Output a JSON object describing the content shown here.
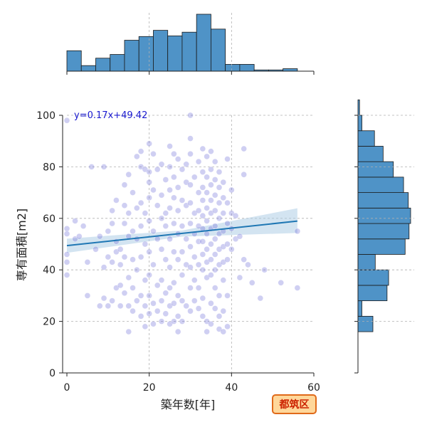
{
  "chart_data": {
    "type": "scatter",
    "title": "",
    "xlabel": "築年数[年]",
    "ylabel": "専有面積[m2]",
    "xlim": [
      0,
      60
    ],
    "ylim": [
      0,
      100
    ],
    "x_ticks": [
      0,
      20,
      40,
      60
    ],
    "y_ticks": [
      0,
      20,
      40,
      60,
      80,
      100
    ],
    "grid": true,
    "point_color": "#6b6bd6",
    "regression": {
      "slope": 0.17,
      "intercept": 49.42,
      "x_range": [
        0,
        56
      ],
      "ci_lower": [
        [
          0,
          46.6
        ],
        [
          28,
          52.9
        ],
        [
          56,
          54.3
        ]
      ],
      "ci_upper": [
        [
          0,
          52.1
        ],
        [
          28,
          55.3
        ],
        [
          56,
          63.9
        ]
      ],
      "line_color": "#1f77b4",
      "band_color": "#aecde6",
      "equation": "y=0.17x+49.42"
    },
    "marginal_x_hist": {
      "bin_width": 3.5,
      "bin_start": 0,
      "counts": [
        3.3,
        0.9,
        2.1,
        2.7,
        5.0,
        5.6,
        6.6,
        5.7,
        6.3,
        9.2,
        6.8,
        1.1,
        1.1,
        0.2,
        0.2,
        0.4
      ],
      "color": "#4f93c7"
    },
    "marginal_y_hist": {
      "bin_width": 6,
      "bin_start": 16,
      "counts": [
        1.9,
        0.5,
        3.7,
        3.9,
        2.2,
        6.0,
        6.5,
        6.7,
        6.4,
        5.8,
        4.5,
        3.2,
        2.1,
        0.5,
        0.2
      ],
      "color": "#4f93c7"
    },
    "badge": {
      "text": "都筑区",
      "fill": "#ffd79a",
      "border": "#e06a1a",
      "text_color": "#cc2200"
    },
    "points": [
      [
        0,
        98
      ],
      [
        0,
        56
      ],
      [
        0,
        54
      ],
      [
        0,
        46
      ],
      [
        0,
        43
      ],
      [
        0,
        38
      ],
      [
        2,
        59
      ],
      [
        2,
        52
      ],
      [
        3,
        53
      ],
      [
        4,
        57
      ],
      [
        5,
        43
      ],
      [
        5,
        30
      ],
      [
        6,
        80
      ],
      [
        7,
        48
      ],
      [
        8,
        26
      ],
      [
        8,
        53
      ],
      [
        9,
        80
      ],
      [
        9,
        41
      ],
      [
        9,
        29
      ],
      [
        10,
        55
      ],
      [
        10,
        45
      ],
      [
        10,
        26
      ],
      [
        11,
        63
      ],
      [
        11,
        58
      ],
      [
        11,
        43
      ],
      [
        11,
        28
      ],
      [
        12,
        67
      ],
      [
        12,
        51
      ],
      [
        12,
        47
      ],
      [
        12,
        33
      ],
      [
        13,
        48
      ],
      [
        13,
        42
      ],
      [
        13,
        34
      ],
      [
        13,
        26
      ],
      [
        14,
        73
      ],
      [
        14,
        65
      ],
      [
        14,
        58
      ],
      [
        14,
        45
      ],
      [
        14,
        31
      ],
      [
        15,
        77
      ],
      [
        15,
        62
      ],
      [
        15,
        53
      ],
      [
        15,
        37
      ],
      [
        15,
        26
      ],
      [
        16,
        70
      ],
      [
        16,
        55
      ],
      [
        16,
        44
      ],
      [
        16,
        33
      ],
      [
        16,
        24
      ],
      [
        17,
        84
      ],
      [
        17,
        64
      ],
      [
        17,
        52
      ],
      [
        17,
        40
      ],
      [
        17,
        28
      ],
      [
        18,
        86
      ],
      [
        18,
        80
      ],
      [
        18,
        66
      ],
      [
        18,
        57
      ],
      [
        18,
        45
      ],
      [
        18,
        30
      ],
      [
        18,
        22
      ],
      [
        19,
        79
      ],
      [
        19,
        62
      ],
      [
        19,
        50
      ],
      [
        19,
        36
      ],
      [
        19,
        26
      ],
      [
        19,
        18
      ],
      [
        20,
        89
      ],
      [
        20,
        74
      ],
      [
        20,
        68
      ],
      [
        20,
        59
      ],
      [
        20,
        47
      ],
      [
        20,
        38
      ],
      [
        20,
        30
      ],
      [
        20,
        23
      ],
      [
        21,
        85
      ],
      [
        21,
        71
      ],
      [
        21,
        55
      ],
      [
        21,
        42
      ],
      [
        21,
        27
      ],
      [
        21,
        19
      ],
      [
        22,
        79
      ],
      [
        22,
        65
      ],
      [
        22,
        52
      ],
      [
        22,
        34
      ],
      [
        22,
        24
      ],
      [
        23,
        81
      ],
      [
        23,
        69
      ],
      [
        23,
        60
      ],
      [
        23,
        48
      ],
      [
        23,
        36
      ],
      [
        23,
        28
      ],
      [
        23,
        20
      ],
      [
        24,
        75
      ],
      [
        24,
        62
      ],
      [
        24,
        57
      ],
      [
        24,
        44
      ],
      [
        24,
        31
      ],
      [
        24,
        23
      ],
      [
        25,
        88
      ],
      [
        25,
        80
      ],
      [
        25,
        71
      ],
      [
        25,
        64
      ],
      [
        25,
        52
      ],
      [
        25,
        41
      ],
      [
        25,
        33
      ],
      [
        25,
        26
      ],
      [
        25,
        19
      ],
      [
        26,
        85
      ],
      [
        26,
        76
      ],
      [
        26,
        68
      ],
      [
        26,
        58
      ],
      [
        26,
        47
      ],
      [
        26,
        35
      ],
      [
        26,
        27
      ],
      [
        26,
        20
      ],
      [
        27,
        83
      ],
      [
        27,
        72
      ],
      [
        27,
        63
      ],
      [
        27,
        54
      ],
      [
        27,
        44
      ],
      [
        27,
        30
      ],
      [
        27,
        22
      ],
      [
        28,
        79
      ],
      [
        28,
        67
      ],
      [
        28,
        57
      ],
      [
        28,
        47
      ],
      [
        28,
        38
      ],
      [
        28,
        28
      ],
      [
        28,
        20
      ],
      [
        29,
        81
      ],
      [
        29,
        74
      ],
      [
        29,
        65
      ],
      [
        29,
        52
      ],
      [
        29,
        42
      ],
      [
        29,
        26
      ],
      [
        30,
        91
      ],
      [
        30,
        85
      ],
      [
        30,
        73
      ],
      [
        30,
        66
      ],
      [
        30,
        58
      ],
      [
        30,
        49
      ],
      [
        30,
        41
      ],
      [
        30,
        33
      ],
      [
        30,
        24
      ],
      [
        31,
        76
      ],
      [
        31,
        62
      ],
      [
        31,
        54
      ],
      [
        31,
        45
      ],
      [
        31,
        36
      ],
      [
        31,
        28
      ],
      [
        32,
        82
      ],
      [
        32,
        70
      ],
      [
        32,
        63
      ],
      [
        32,
        57
      ],
      [
        32,
        51
      ],
      [
        32,
        42
      ],
      [
        32,
        33
      ],
      [
        32,
        25
      ],
      [
        33,
        87
      ],
      [
        33,
        78
      ],
      [
        33,
        72
      ],
      [
        33,
        67
      ],
      [
        33,
        61
      ],
      [
        33,
        56
      ],
      [
        33,
        51
      ],
      [
        33,
        46
      ],
      [
        33,
        40
      ],
      [
        33,
        29
      ],
      [
        33,
        22
      ],
      [
        34,
        84
      ],
      [
        34,
        76
      ],
      [
        34,
        70
      ],
      [
        34,
        64
      ],
      [
        34,
        59
      ],
      [
        34,
        54
      ],
      [
        34,
        48
      ],
      [
        34,
        43
      ],
      [
        34,
        37
      ],
      [
        34,
        20
      ],
      [
        35,
        86
      ],
      [
        35,
        79
      ],
      [
        35,
        73
      ],
      [
        35,
        67
      ],
      [
        35,
        62
      ],
      [
        35,
        56
      ],
      [
        35,
        50
      ],
      [
        35,
        44
      ],
      [
        35,
        38
      ],
      [
        35,
        27
      ],
      [
        35,
        19
      ],
      [
        36,
        82
      ],
      [
        36,
        75
      ],
      [
        36,
        69
      ],
      [
        36,
        63
      ],
      [
        36,
        57
      ],
      [
        36,
        52
      ],
      [
        36,
        46
      ],
      [
        36,
        40
      ],
      [
        36,
        33
      ],
      [
        36,
        25
      ],
      [
        37,
        78
      ],
      [
        37,
        72
      ],
      [
        37,
        66
      ],
      [
        37,
        60
      ],
      [
        37,
        54
      ],
      [
        37,
        48
      ],
      [
        37,
        42
      ],
      [
        37,
        30
      ],
      [
        37,
        22
      ],
      [
        37,
        17
      ],
      [
        38,
        74
      ],
      [
        38,
        68
      ],
      [
        38,
        62
      ],
      [
        38,
        55
      ],
      [
        38,
        49
      ],
      [
        38,
        43
      ],
      [
        38,
        36
      ],
      [
        38,
        24
      ],
      [
        38,
        16
      ],
      [
        39,
        83
      ],
      [
        39,
        66
      ],
      [
        39,
        58
      ],
      [
        39,
        50
      ],
      [
        39,
        44
      ],
      [
        39,
        30
      ],
      [
        39,
        18
      ],
      [
        40,
        71
      ],
      [
        40,
        62
      ],
      [
        40,
        56
      ],
      [
        40,
        48
      ],
      [
        41,
        61
      ],
      [
        41,
        52
      ],
      [
        42,
        53
      ],
      [
        42,
        37
      ],
      [
        43,
        87
      ],
      [
        43,
        77
      ],
      [
        43,
        44
      ],
      [
        44,
        42
      ],
      [
        45,
        35
      ],
      [
        47,
        29
      ],
      [
        48,
        40
      ],
      [
        52,
        35
      ],
      [
        56,
        55
      ],
      [
        56,
        33
      ],
      [
        30,
        100
      ],
      [
        20,
        78
      ],
      [
        15,
        16
      ],
      [
        27,
        16
      ],
      [
        34,
        16
      ]
    ]
  }
}
